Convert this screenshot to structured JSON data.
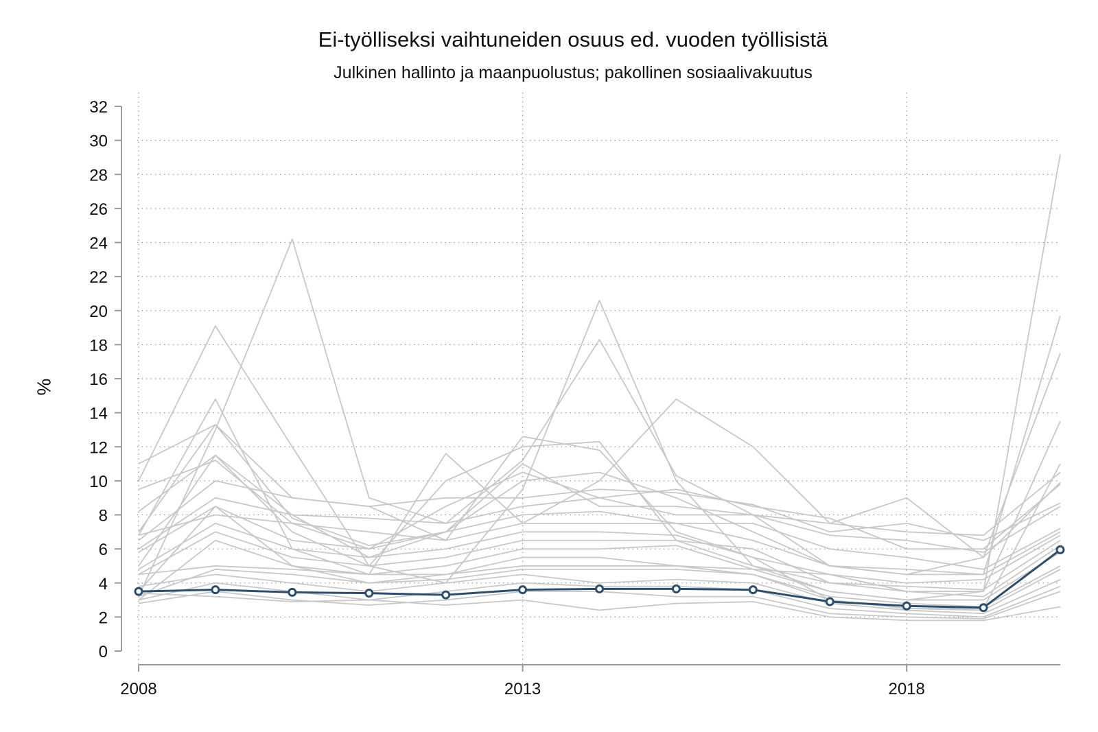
{
  "chart_data": {
    "type": "line",
    "title": "Ei-työlliseksi vaihtuneiden osuus ed. vuoden työllisistä",
    "subtitle": "Julkinen hallinto ja maanpuolustus; pakollinen sosiaalivakuutus",
    "xlabel": "",
    "ylabel": "%",
    "xlim": [
      2008,
      2020
    ],
    "ylim": [
      0,
      32
    ],
    "xticks": [
      2008,
      2013,
      2018
    ],
    "yticks": [
      0,
      2,
      4,
      6,
      8,
      10,
      12,
      14,
      16,
      18,
      20,
      22,
      24,
      26,
      28,
      30,
      32
    ],
    "grid": true,
    "x": [
      2008,
      2009,
      2010,
      2011,
      2012,
      2013,
      2014,
      2015,
      2016,
      2017,
      2018,
      2019,
      2020
    ],
    "highlight_color": "#2e4d6b",
    "background_color": "#c8c8c8",
    "highlight": {
      "values": [
        3.5,
        3.6,
        3.45,
        3.4,
        3.3,
        3.6,
        3.65,
        3.65,
        3.6,
        2.9,
        2.65,
        2.55,
        5.95
      ]
    },
    "background_series": [
      [
        10.0,
        19.1,
        12.0,
        5.0,
        4.0,
        9.5,
        20.6,
        10.0,
        5.0,
        3.5,
        3.0,
        3.5,
        29.2
      ],
      [
        3.2,
        13.0,
        24.2,
        9.0,
        7.5,
        11.2,
        18.3,
        10.3,
        8.0,
        5.0,
        4.5,
        4.5,
        19.7
      ],
      [
        6.8,
        14.8,
        6.0,
        4.5,
        11.6,
        7.5,
        10.0,
        14.8,
        12.0,
        7.5,
        9.0,
        5.5,
        17.5
      ],
      [
        5.0,
        11.5,
        7.0,
        5.0,
        10.0,
        12.0,
        12.3,
        6.5,
        5.0,
        4.0,
        3.5,
        3.5,
        13.5
      ],
      [
        7.0,
        13.3,
        9.0,
        8.5,
        6.5,
        12.6,
        11.8,
        7.0,
        5.5,
        3.0,
        2.5,
        2.5,
        11.0
      ],
      [
        8.2,
        11.5,
        8.0,
        5.5,
        7.0,
        11.0,
        8.5,
        8.5,
        8.0,
        7.5,
        7.0,
        6.8,
        10.5
      ],
      [
        9.5,
        11.2,
        7.5,
        6.0,
        8.5,
        10.5,
        9.0,
        9.5,
        8.5,
        7.8,
        6.0,
        6.0,
        9.8
      ],
      [
        11.0,
        13.3,
        7.8,
        6.2,
        7.0,
        10.0,
        10.5,
        9.0,
        7.0,
        5.0,
        4.5,
        5.5,
        9.9
      ],
      [
        6.5,
        10.0,
        9.0,
        8.5,
        9.0,
        9.0,
        9.5,
        9.3,
        8.6,
        7.0,
        7.5,
        6.5,
        8.7
      ],
      [
        6.0,
        9.0,
        8.0,
        7.8,
        7.5,
        8.5,
        9.0,
        8.0,
        8.0,
        6.8,
        6.5,
        5.8,
        8.5
      ],
      [
        5.8,
        8.5,
        6.5,
        6.0,
        7.0,
        8.0,
        8.2,
        7.5,
        7.5,
        6.0,
        5.5,
        4.8,
        7.2
      ],
      [
        6.8,
        8.0,
        7.5,
        7.0,
        6.5,
        7.5,
        7.5,
        7.5,
        6.5,
        5.0,
        4.8,
        4.5,
        7.0
      ],
      [
        4.8,
        7.5,
        6.0,
        5.5,
        6.0,
        7.0,
        7.0,
        6.8,
        5.5,
        4.5,
        4.0,
        4.2,
        6.8
      ],
      [
        4.5,
        7.0,
        5.5,
        5.0,
        5.5,
        6.5,
        6.5,
        6.5,
        6.0,
        4.0,
        3.8,
        3.6,
        6.5
      ],
      [
        3.5,
        8.5,
        5.0,
        4.5,
        5.0,
        6.0,
        6.0,
        6.2,
        4.8,
        4.5,
        3.5,
        3.2,
        6.2
      ],
      [
        3.0,
        6.5,
        5.0,
        4.0,
        4.5,
        5.5,
        5.5,
        5.0,
        4.8,
        3.5,
        3.0,
        3.0,
        5.8
      ],
      [
        4.5,
        5.0,
        4.8,
        4.5,
        4.5,
        5.0,
        5.0,
        5.0,
        4.5,
        3.2,
        2.8,
        2.6,
        5.0
      ],
      [
        3.2,
        4.8,
        4.5,
        4.0,
        4.2,
        4.8,
        4.8,
        4.8,
        4.5,
        3.0,
        2.5,
        2.4,
        4.8
      ],
      [
        3.8,
        4.5,
        4.0,
        3.5,
        4.0,
        4.5,
        4.0,
        4.2,
        4.0,
        2.8,
        2.4,
        2.2,
        4.2
      ],
      [
        3.0,
        4.0,
        3.5,
        3.0,
        3.5,
        4.0,
        3.8,
        3.8,
        3.6,
        2.5,
        2.2,
        2.0,
        3.8
      ],
      [
        2.8,
        3.5,
        3.0,
        2.7,
        3.0,
        3.5,
        3.5,
        3.2,
        3.2,
        2.2,
        2.0,
        1.9,
        3.5
      ],
      [
        3.4,
        3.2,
        2.9,
        3.0,
        2.7,
        3.0,
        2.4,
        2.8,
        2.9,
        2.0,
        1.8,
        1.8,
        2.6
      ]
    ]
  }
}
